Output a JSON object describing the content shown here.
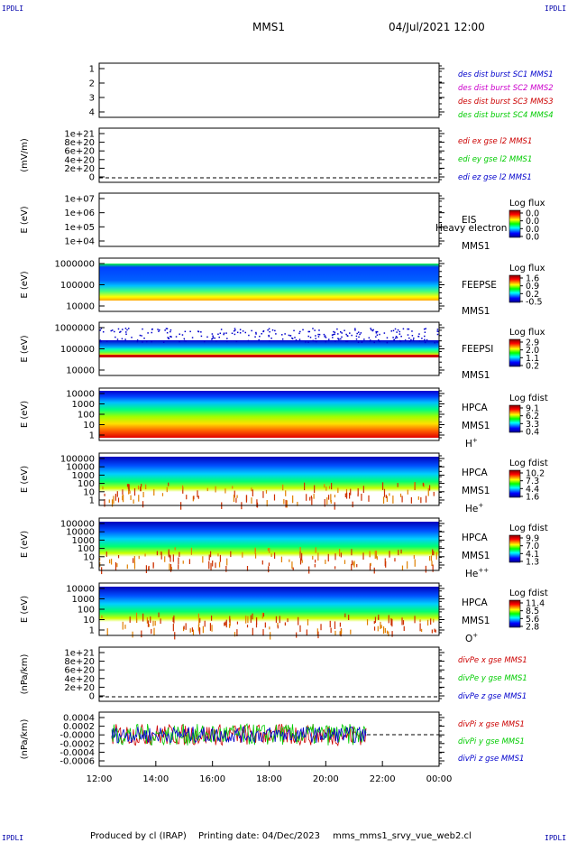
{
  "header": {
    "spacecraft": "MMS1",
    "datetime": "04/Jul/2021 12:00",
    "corner_left": "IPDLI",
    "corner_right": "IPDLI"
  },
  "footer": {
    "produced_by": "Produced by cl (IRAP)",
    "printing_date": "Printing date: 04/Dec/2023",
    "filename": "mms_mms1_srvy_vue_web2.cl"
  },
  "colors": {
    "blue": "#0000cc",
    "magenta": "#cc00cc",
    "red": "#cc0000",
    "green": "#00cc00"
  },
  "chart_data": [
    {
      "type": "line",
      "ylabel": "",
      "ylim": [
        0.5,
        4.5
      ],
      "yticks": [
        "1",
        "2",
        "3",
        "4"
      ],
      "legend": [
        {
          "text": "des dist burst SC1 MMS1",
          "color": "#0000cc"
        },
        {
          "text": "des dist burst SC2 MMS2",
          "color": "#cc00cc"
        },
        {
          "text": "des dist burst SC3 MMS3",
          "color": "#cc0000"
        },
        {
          "text": "des dist burst SC4 MMS4",
          "color": "#00cc00"
        }
      ]
    },
    {
      "type": "line",
      "ylabel": "(mV/m)",
      "yticks": [
        "1e+21",
        "8e+20",
        "6e+20",
        "4e+20",
        "2e+20",
        "0"
      ],
      "zero_line": true,
      "legend": [
        {
          "text": "edi ex gse l2 MMS1",
          "color": "#cc0000"
        },
        {
          "text": "edi ey gse l2 MMS1",
          "color": "#00cc00"
        },
        {
          "text": "edi ez gse l2 MMS1",
          "color": "#0000cc"
        }
      ]
    },
    {
      "type": "heatmap",
      "ylabel": "E (eV)",
      "yticks": [
        "1e+07",
        "1e+06",
        "1e+05",
        "1e+04"
      ],
      "instrument": "EIS",
      "spacecraft": "MMS1",
      "overlay_text": "Heavy electron to",
      "colorbar": {
        "title": "Log flux",
        "values": [
          "0.0",
          "0.0",
          "0.0",
          "0.0"
        ]
      },
      "data_present": false
    },
    {
      "type": "heatmap",
      "ylabel": "E (eV)",
      "yticks": [
        "1000000",
        "100000",
        "10000"
      ],
      "instrument": "FEEPSE",
      "spacecraft": "MMS1",
      "colorbar": {
        "title": "Log flux",
        "values": [
          "1.6",
          "0.9",
          "0.2",
          "-0.5"
        ]
      },
      "data_present": true
    },
    {
      "type": "heatmap",
      "ylabel": "E (eV)",
      "yticks": [
        "1000000",
        "100000",
        "10000"
      ],
      "instrument": "FEEPSI",
      "spacecraft": "MMS1",
      "colorbar": {
        "title": "Log flux",
        "values": [
          "2.9",
          "2.0",
          "1.1",
          "0.2"
        ]
      },
      "data_present": true
    },
    {
      "type": "heatmap",
      "ylabel": "E (eV)",
      "yticks": [
        "10000",
        "1000",
        "100",
        "10",
        "1"
      ],
      "instrument": "HPCA",
      "spacecraft": "MMS1",
      "species": "H",
      "species_sup": "+",
      "colorbar": {
        "title": "Log fdist",
        "values": [
          "9.1",
          "6.2",
          "3.3",
          "0.4"
        ]
      },
      "data_present": true
    },
    {
      "type": "heatmap",
      "ylabel": "E (eV)",
      "yticks": [
        "100000",
        "10000",
        "1000",
        "100",
        "10",
        "1"
      ],
      "instrument": "HPCA",
      "spacecraft": "MMS1",
      "species": "He",
      "species_sup": "+",
      "colorbar": {
        "title": "Log fdist",
        "values": [
          "10.2",
          "7.3",
          "4.4",
          "1.6"
        ]
      },
      "data_present": true
    },
    {
      "type": "heatmap",
      "ylabel": "E (eV)",
      "yticks": [
        "100000",
        "10000",
        "1000",
        "100",
        "10",
        "1"
      ],
      "instrument": "HPCA",
      "spacecraft": "MMS1",
      "species": "He",
      "species_sup": "++",
      "colorbar": {
        "title": "Log fdist",
        "values": [
          "9.9",
          "7.0",
          "4.1",
          "1.3"
        ]
      },
      "data_present": true
    },
    {
      "type": "heatmap",
      "ylabel": "E (eV)",
      "yticks": [
        "10000",
        "1000",
        "100",
        "10",
        "1"
      ],
      "instrument": "HPCA",
      "spacecraft": "MMS1",
      "species": "O",
      "species_sup": "+",
      "colorbar": {
        "title": "Log fdist",
        "values": [
          "11.4",
          "8.5",
          "5.6",
          "2.8"
        ]
      },
      "data_present": true
    },
    {
      "type": "line",
      "ylabel": "(nPa/km)",
      "yticks": [
        "1e+21",
        "8e+20",
        "6e+20",
        "4e+20",
        "2e+20",
        "0"
      ],
      "zero_line": true,
      "legend": [
        {
          "text": "divPe x gse MMS1",
          "color": "#cc0000"
        },
        {
          "text": "divPe y gse MMS1",
          "color": "#00cc00"
        },
        {
          "text": "divPe z gse MMS1",
          "color": "#0000cc"
        }
      ]
    },
    {
      "type": "line",
      "ylabel": "(nPa/km)",
      "yticks": [
        "0.0004",
        "0.0002",
        "-0.0000",
        "-0.0002",
        "-0.0004",
        "-0.0006"
      ],
      "ylim": [
        -0.0007,
        0.0005
      ],
      "x_data_range": [
        "12:30",
        "21:30"
      ],
      "zero_line": true,
      "legend": [
        {
          "text": "divPi x gse MMS1",
          "color": "#cc0000"
        },
        {
          "text": "divPi y gse MMS1",
          "color": "#00cc00"
        },
        {
          "text": "divPi z gse MMS1",
          "color": "#0000cc"
        }
      ]
    }
  ],
  "x_axis": {
    "ticks": [
      "12:00",
      "14:00",
      "16:00",
      "18:00",
      "20:00",
      "22:00",
      "00:00"
    ],
    "range": [
      "12:00",
      "00:00"
    ]
  }
}
